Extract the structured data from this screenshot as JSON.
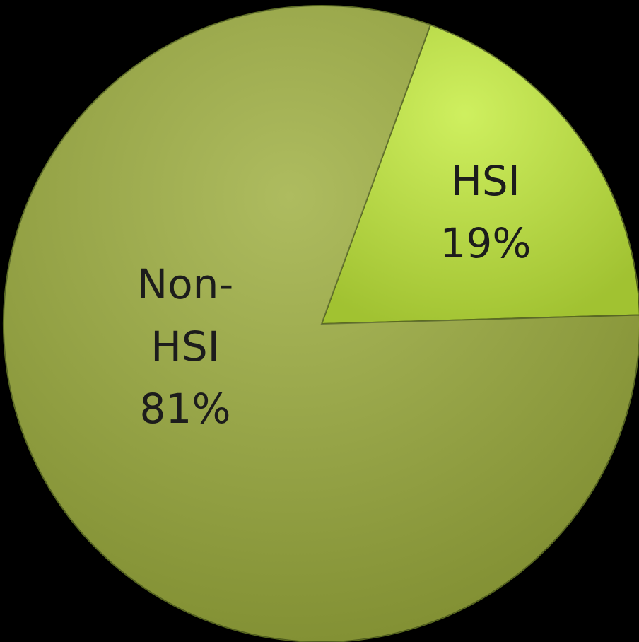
{
  "chart_data": {
    "type": "pie",
    "categories": [
      "HSI",
      "Non-HSI"
    ],
    "values": [
      19,
      81
    ],
    "value_labels": [
      "19%",
      "81%"
    ],
    "colors": [
      "#c4ec3c",
      "#9cad3c"
    ]
  }
}
